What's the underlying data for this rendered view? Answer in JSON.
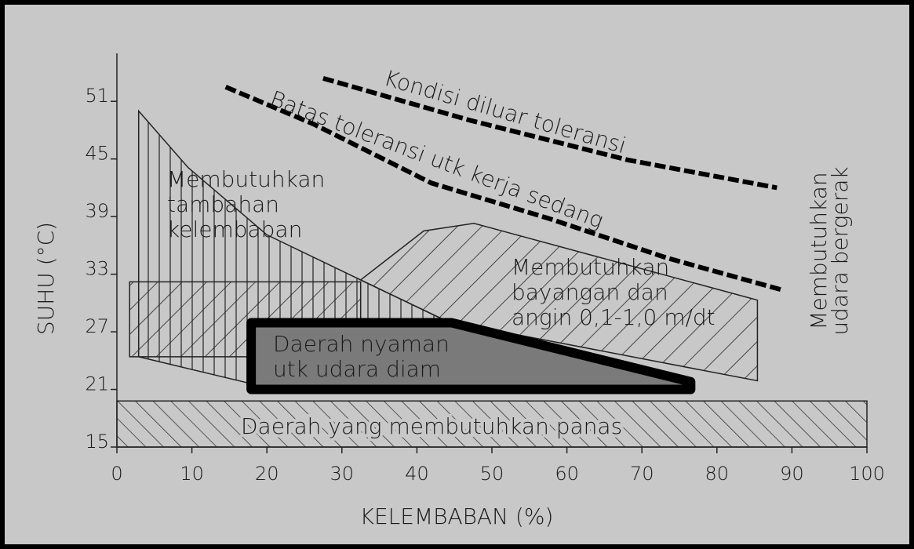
{
  "chart_data": {
    "type": "region",
    "x_label": "KELEMBABAN (%)",
    "y_label": "SUHU (°C)",
    "xlim": [
      0,
      100
    ],
    "ylim": [
      15,
      56
    ],
    "xticks": [
      0,
      10,
      20,
      30,
      40,
      50,
      60,
      70,
      80,
      90,
      100
    ],
    "yticks": [
      15,
      21,
      27,
      33,
      39,
      45,
      51
    ],
    "regions": [
      {
        "style": "backslash",
        "labels": [],
        "x": [
          1.7,
          32.5,
          32.5,
          1.7
        ],
        "y": [
          32.2,
          32.2,
          24.4,
          24.4
        ]
      },
      {
        "style": "vertical",
        "labels": [
          "Membutuhkan",
          "tambahan",
          "kelembaban"
        ],
        "x": [
          2.9,
          9.5,
          20.0,
          32.5,
          44.0,
          17.9,
          17.9,
          2.9
        ],
        "y": [
          50.0,
          44.1,
          37.1,
          32.4,
          28.1,
          28.0,
          21.6,
          24.4
        ]
      },
      {
        "style": "backslash",
        "labels": [
          "Membutuhkan",
          "bayangan dan",
          "angin 0,1-1,0 m/dt"
        ],
        "x": [
          32.5,
          40.9,
          47.6,
          85.4,
          85.4,
          44.0
        ],
        "y": [
          32.4,
          37.5,
          38.3,
          30.3,
          21.9,
          28.1
        ]
      },
      {
        "style": "slash",
        "labels": [
          "Daerah yang membutuhkan panas"
        ],
        "x": [
          0,
          100,
          100,
          0
        ],
        "y": [
          15,
          15,
          19.8,
          19.8
        ]
      },
      {
        "style": "solid",
        "labels": [
          "Daerah nyaman",
          "utk udara diam"
        ],
        "x": [
          17.9,
          44.6,
          76.5,
          76.5,
          17.9
        ],
        "y": [
          27.95,
          27.95,
          21.8,
          21.0,
          21.0
        ]
      }
    ],
    "lines": [
      {
        "name": "Kondisi diluar toleransi",
        "x": [
          27.5,
          47.2,
          68.1,
          88.0
        ],
        "y": [
          53.4,
          49.0,
          44.9,
          42.0
        ]
      },
      {
        "name": "Batas toleransi utk kerja sedang",
        "x": [
          14.5,
          26.3,
          41.9,
          57.6,
          73.3,
          88.5
        ],
        "y": [
          52.5,
          48.6,
          42.5,
          38.8,
          34.7,
          31.4
        ]
      }
    ],
    "side_note": [
      "Membutuhkan",
      "udara bergerak"
    ]
  }
}
